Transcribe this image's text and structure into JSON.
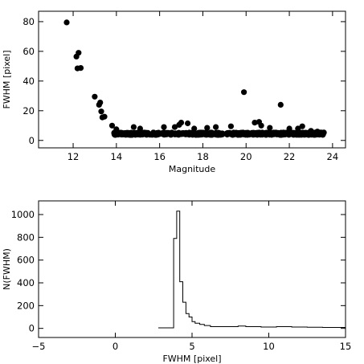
{
  "chart_data": [
    {
      "type": "scatter",
      "xlabel": "Magnitude",
      "ylabel": "FWHM [pixel]",
      "xlim": [
        10.4,
        24.6
      ],
      "ylim": [
        -5,
        87
      ],
      "xticks": [
        12,
        14,
        16,
        18,
        20,
        22,
        24
      ],
      "yticks": [
        0,
        20,
        40,
        60,
        80
      ],
      "grid": false,
      "marker_color": "#000000",
      "points": [
        [
          11.7,
          79.5
        ],
        [
          12.15,
          56.5
        ],
        [
          12.25,
          59.0
        ],
        [
          12.2,
          48.5
        ],
        [
          12.35,
          48.8
        ],
        [
          13.0,
          29.5
        ],
        [
          13.2,
          24.0
        ],
        [
          13.25,
          25.5
        ],
        [
          13.3,
          19.5
        ],
        [
          13.35,
          15.5
        ],
        [
          13.45,
          16.0
        ],
        [
          13.8,
          10.0
        ],
        [
          14.0,
          7.5
        ],
        [
          14.8,
          9.0
        ],
        [
          15.1,
          8.0
        ],
        [
          16.2,
          9.0
        ],
        [
          16.7,
          9.0
        ],
        [
          16.9,
          10.5
        ],
        [
          17.0,
          12.0
        ],
        [
          17.3,
          11.5
        ],
        [
          17.6,
          8.0
        ],
        [
          18.2,
          8.5
        ],
        [
          18.6,
          9.0
        ],
        [
          19.3,
          9.5
        ],
        [
          19.9,
          32.5
        ],
        [
          20.4,
          12.0
        ],
        [
          20.6,
          12.5
        ],
        [
          20.7,
          10.0
        ],
        [
          21.1,
          8.5
        ],
        [
          21.6,
          24.0
        ],
        [
          22.0,
          8.0
        ],
        [
          22.4,
          8.0
        ],
        [
          22.6,
          9.5
        ],
        [
          23.0,
          6.5
        ],
        [
          23.3,
          6.0
        ]
      ],
      "dense_band": {
        "x_from": 13.9,
        "x_to": 23.6,
        "y_base": 4.2,
        "y_jitter": 1.6,
        "count": 700
      }
    },
    {
      "type": "histogram",
      "xlabel": "FWHM [pixel]",
      "ylabel": "N(FWHM)",
      "xlim": [
        -5,
        15
      ],
      "ylim": [
        -80,
        1120
      ],
      "xticks": [
        -5,
        0,
        5,
        10,
        15
      ],
      "yticks": [
        0,
        200,
        400,
        600,
        800,
        1000
      ],
      "grid": false,
      "line_color": "#000000",
      "bin_edges": [
        2.8,
        3.8,
        4.0,
        4.2,
        4.4,
        4.6,
        4.8,
        5.0,
        5.2,
        5.5,
        5.8,
        6.2,
        8.0,
        8.5,
        9.5,
        10.5,
        11.5,
        12.5,
        13.5,
        15.0
      ],
      "counts": [
        5,
        790,
        1030,
        410,
        230,
        130,
        100,
        60,
        45,
        35,
        25,
        15,
        20,
        15,
        12,
        15,
        12,
        10,
        8
      ]
    }
  ]
}
